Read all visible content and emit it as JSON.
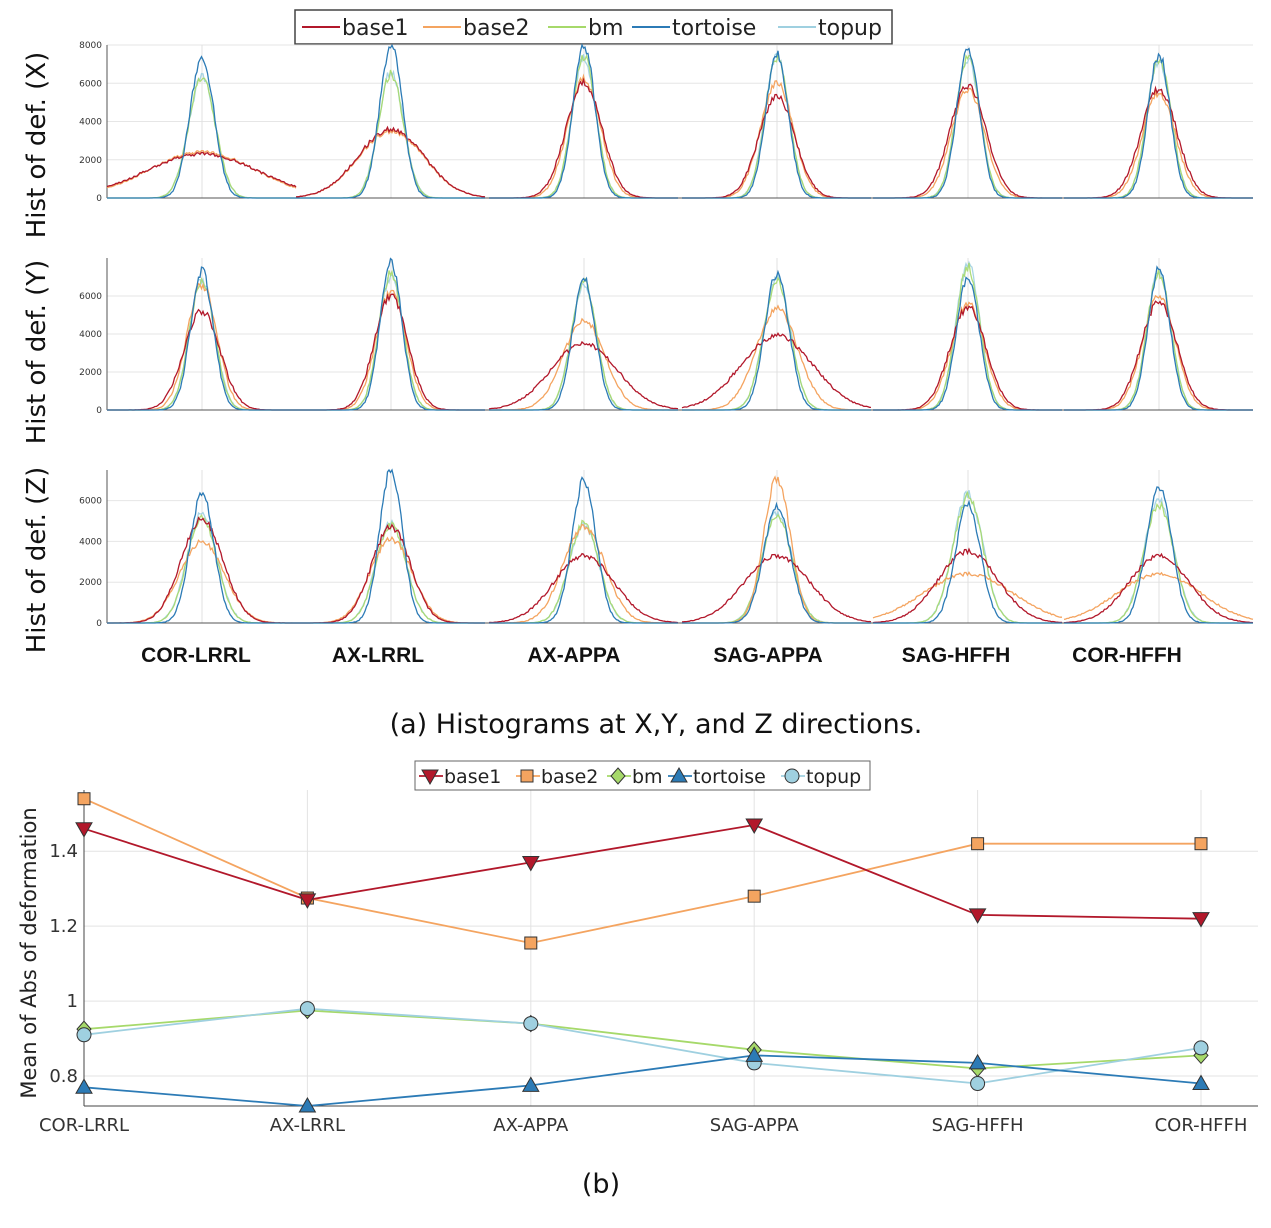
{
  "chart_data": [
    {
      "type": "line",
      "subtype": "histogram",
      "title": "",
      "ylabel": "Hist of def.  (X)",
      "ylim": [
        0,
        8000
      ],
      "yticks": [
        "0",
        "2000",
        "4000",
        "6000",
        "8000"
      ],
      "categories": [
        "COR-LRRL",
        "AX-LRRL",
        "AX-APPA",
        "SAG-APPA",
        "SAG-HFFH",
        "COR-HFFH"
      ],
      "series": [
        {
          "name": "base1",
          "peaks": [
            2300,
            3600,
            6000,
            5300,
            5900,
            5700
          ],
          "widths": [
            1.9,
            1.1,
            0.6,
            0.6,
            0.6,
            0.6
          ]
        },
        {
          "name": "base2",
          "peaks": [
            2400,
            3500,
            6200,
            6000,
            5700,
            5500
          ],
          "widths": [
            1.8,
            1.1,
            0.55,
            0.55,
            0.55,
            0.55
          ]
        },
        {
          "name": "bm",
          "peaks": [
            6300,
            6500,
            7400,
            7300,
            7400,
            7300
          ],
          "widths": [
            0.45,
            0.42,
            0.4,
            0.4,
            0.4,
            0.4
          ]
        },
        {
          "name": "tortoise",
          "peaks": [
            7400,
            8000,
            8000,
            7600,
            7800,
            7500
          ],
          "widths": [
            0.4,
            0.38,
            0.37,
            0.37,
            0.37,
            0.37
          ]
        },
        {
          "name": "topup",
          "peaks": [
            6300,
            6600,
            7300,
            7400,
            7300,
            7200
          ],
          "widths": [
            0.45,
            0.42,
            0.4,
            0.4,
            0.4,
            0.4
          ]
        }
      ]
    },
    {
      "type": "line",
      "subtype": "histogram",
      "ylabel": "Hist of def. (Y)",
      "ylim": [
        0,
        8000
      ],
      "yticks": [
        "0",
        "2000",
        "4000",
        "6000"
      ],
      "categories": [
        "COR-LRRL",
        "AX-LRRL",
        "AX-APPA",
        "SAG-APPA",
        "SAG-HFFH",
        "COR-HFFH"
      ],
      "series": [
        {
          "name": "base1",
          "peaks": [
            5200,
            6000,
            3500,
            3900,
            5400,
            5700
          ],
          "widths": [
            0.6,
            0.55,
            1.1,
            1.2,
            0.6,
            0.6
          ]
        },
        {
          "name": "base2",
          "peaks": [
            6600,
            6200,
            4700,
            5300,
            5600,
            6000
          ],
          "widths": [
            0.5,
            0.5,
            0.7,
            0.7,
            0.55,
            0.55
          ]
        },
        {
          "name": "bm",
          "peaks": [
            6800,
            7200,
            6700,
            6800,
            7500,
            7200
          ],
          "widths": [
            0.42,
            0.4,
            0.42,
            0.45,
            0.4,
            0.4
          ]
        },
        {
          "name": "tortoise",
          "peaks": [
            7300,
            7800,
            6900,
            7200,
            7000,
            7400
          ],
          "widths": [
            0.38,
            0.36,
            0.38,
            0.4,
            0.38,
            0.37
          ]
        },
        {
          "name": "topup",
          "peaks": [
            6900,
            7000,
            6600,
            6900,
            7700,
            7300
          ],
          "widths": [
            0.42,
            0.4,
            0.42,
            0.45,
            0.4,
            0.4
          ]
        }
      ]
    },
    {
      "type": "line",
      "subtype": "histogram",
      "ylabel": "Hist of def. (Z)",
      "ylim": [
        0,
        7500
      ],
      "yticks": [
        "0",
        "2000",
        "4000",
        "6000"
      ],
      "categories": [
        "COR-LRRL",
        "AX-LRRL",
        "AX-APPA",
        "SAG-APPA",
        "SAG-HFFH",
        "COR-HFFH"
      ],
      "series": [
        {
          "name": "base1",
          "peaks": [
            5100,
            4700,
            3300,
            3300,
            3500,
            3300
          ],
          "widths": [
            0.7,
            0.65,
            1.0,
            1.1,
            1.0,
            1.0
          ]
        },
        {
          "name": "base2",
          "peaks": [
            4000,
            4100,
            4700,
            7100,
            2400,
            2400
          ],
          "widths": [
            0.75,
            0.7,
            0.7,
            0.45,
            1.5,
            1.4
          ]
        },
        {
          "name": "bm",
          "peaks": [
            5200,
            4800,
            4900,
            5300,
            6200,
            5800
          ],
          "widths": [
            0.5,
            0.5,
            0.5,
            0.5,
            0.5,
            0.5
          ]
        },
        {
          "name": "tortoise",
          "peaks": [
            6400,
            7500,
            7000,
            5700,
            5800,
            6700
          ],
          "widths": [
            0.4,
            0.38,
            0.4,
            0.45,
            0.42,
            0.42
          ]
        },
        {
          "name": "topup",
          "peaks": [
            5400,
            4900,
            4800,
            5400,
            6300,
            6000
          ],
          "widths": [
            0.5,
            0.5,
            0.5,
            0.5,
            0.5,
            0.5
          ]
        }
      ]
    },
    {
      "type": "line",
      "title": "",
      "xlabel": "",
      "ylabel": "Mean of Abs of deformation",
      "ylim": [
        0.72,
        1.55
      ],
      "yticks": [
        0.8,
        1,
        1.2,
        1.4
      ],
      "ytick_labels": [
        "0.8",
        "1",
        "1.2",
        "1.4"
      ],
      "categories": [
        "COR-LRRL",
        "AX-LRRL",
        "AX-APPA",
        "SAG-APPA",
        "SAG-HFFH",
        "COR-HFFH"
      ],
      "series": [
        {
          "name": "base1",
          "marker": "triangle-down",
          "values": [
            1.46,
            1.27,
            1.37,
            1.47,
            1.23,
            1.22
          ]
        },
        {
          "name": "base2",
          "marker": "square",
          "values": [
            1.54,
            1.275,
            1.155,
            1.28,
            1.42,
            1.42
          ]
        },
        {
          "name": "bm",
          "marker": "diamond",
          "values": [
            0.925,
            0.975,
            0.94,
            0.87,
            0.82,
            0.855
          ]
        },
        {
          "name": "tortoise",
          "marker": "triangle-up",
          "values": [
            0.77,
            0.72,
            0.775,
            0.855,
            0.835,
            0.78
          ]
        },
        {
          "name": "topup",
          "marker": "circle",
          "values": [
            0.91,
            0.98,
            0.94,
            0.835,
            0.78,
            0.875
          ]
        }
      ]
    }
  ],
  "series_colors": {
    "base1": "#b2182b",
    "base2": "#f4a460",
    "bm": "#a6d96a",
    "tortoise": "#2c7bb6",
    "topup": "#9fd0e0"
  },
  "legend_a": [
    "base1",
    "base2",
    "bm",
    "tortoise",
    "topup"
  ],
  "legend_b": [
    "base1",
    "base2",
    "bm",
    "tortoise",
    "topup"
  ],
  "category_labels": [
    "COR-LRRL",
    "AX-LRRL",
    "AX-APPA",
    "SAG-APPA",
    "SAG-HFFH",
    "COR-HFFH"
  ],
  "caption_a": "(a) Histograms at X,Y, and Z directions.",
  "caption_b": "(b)"
}
